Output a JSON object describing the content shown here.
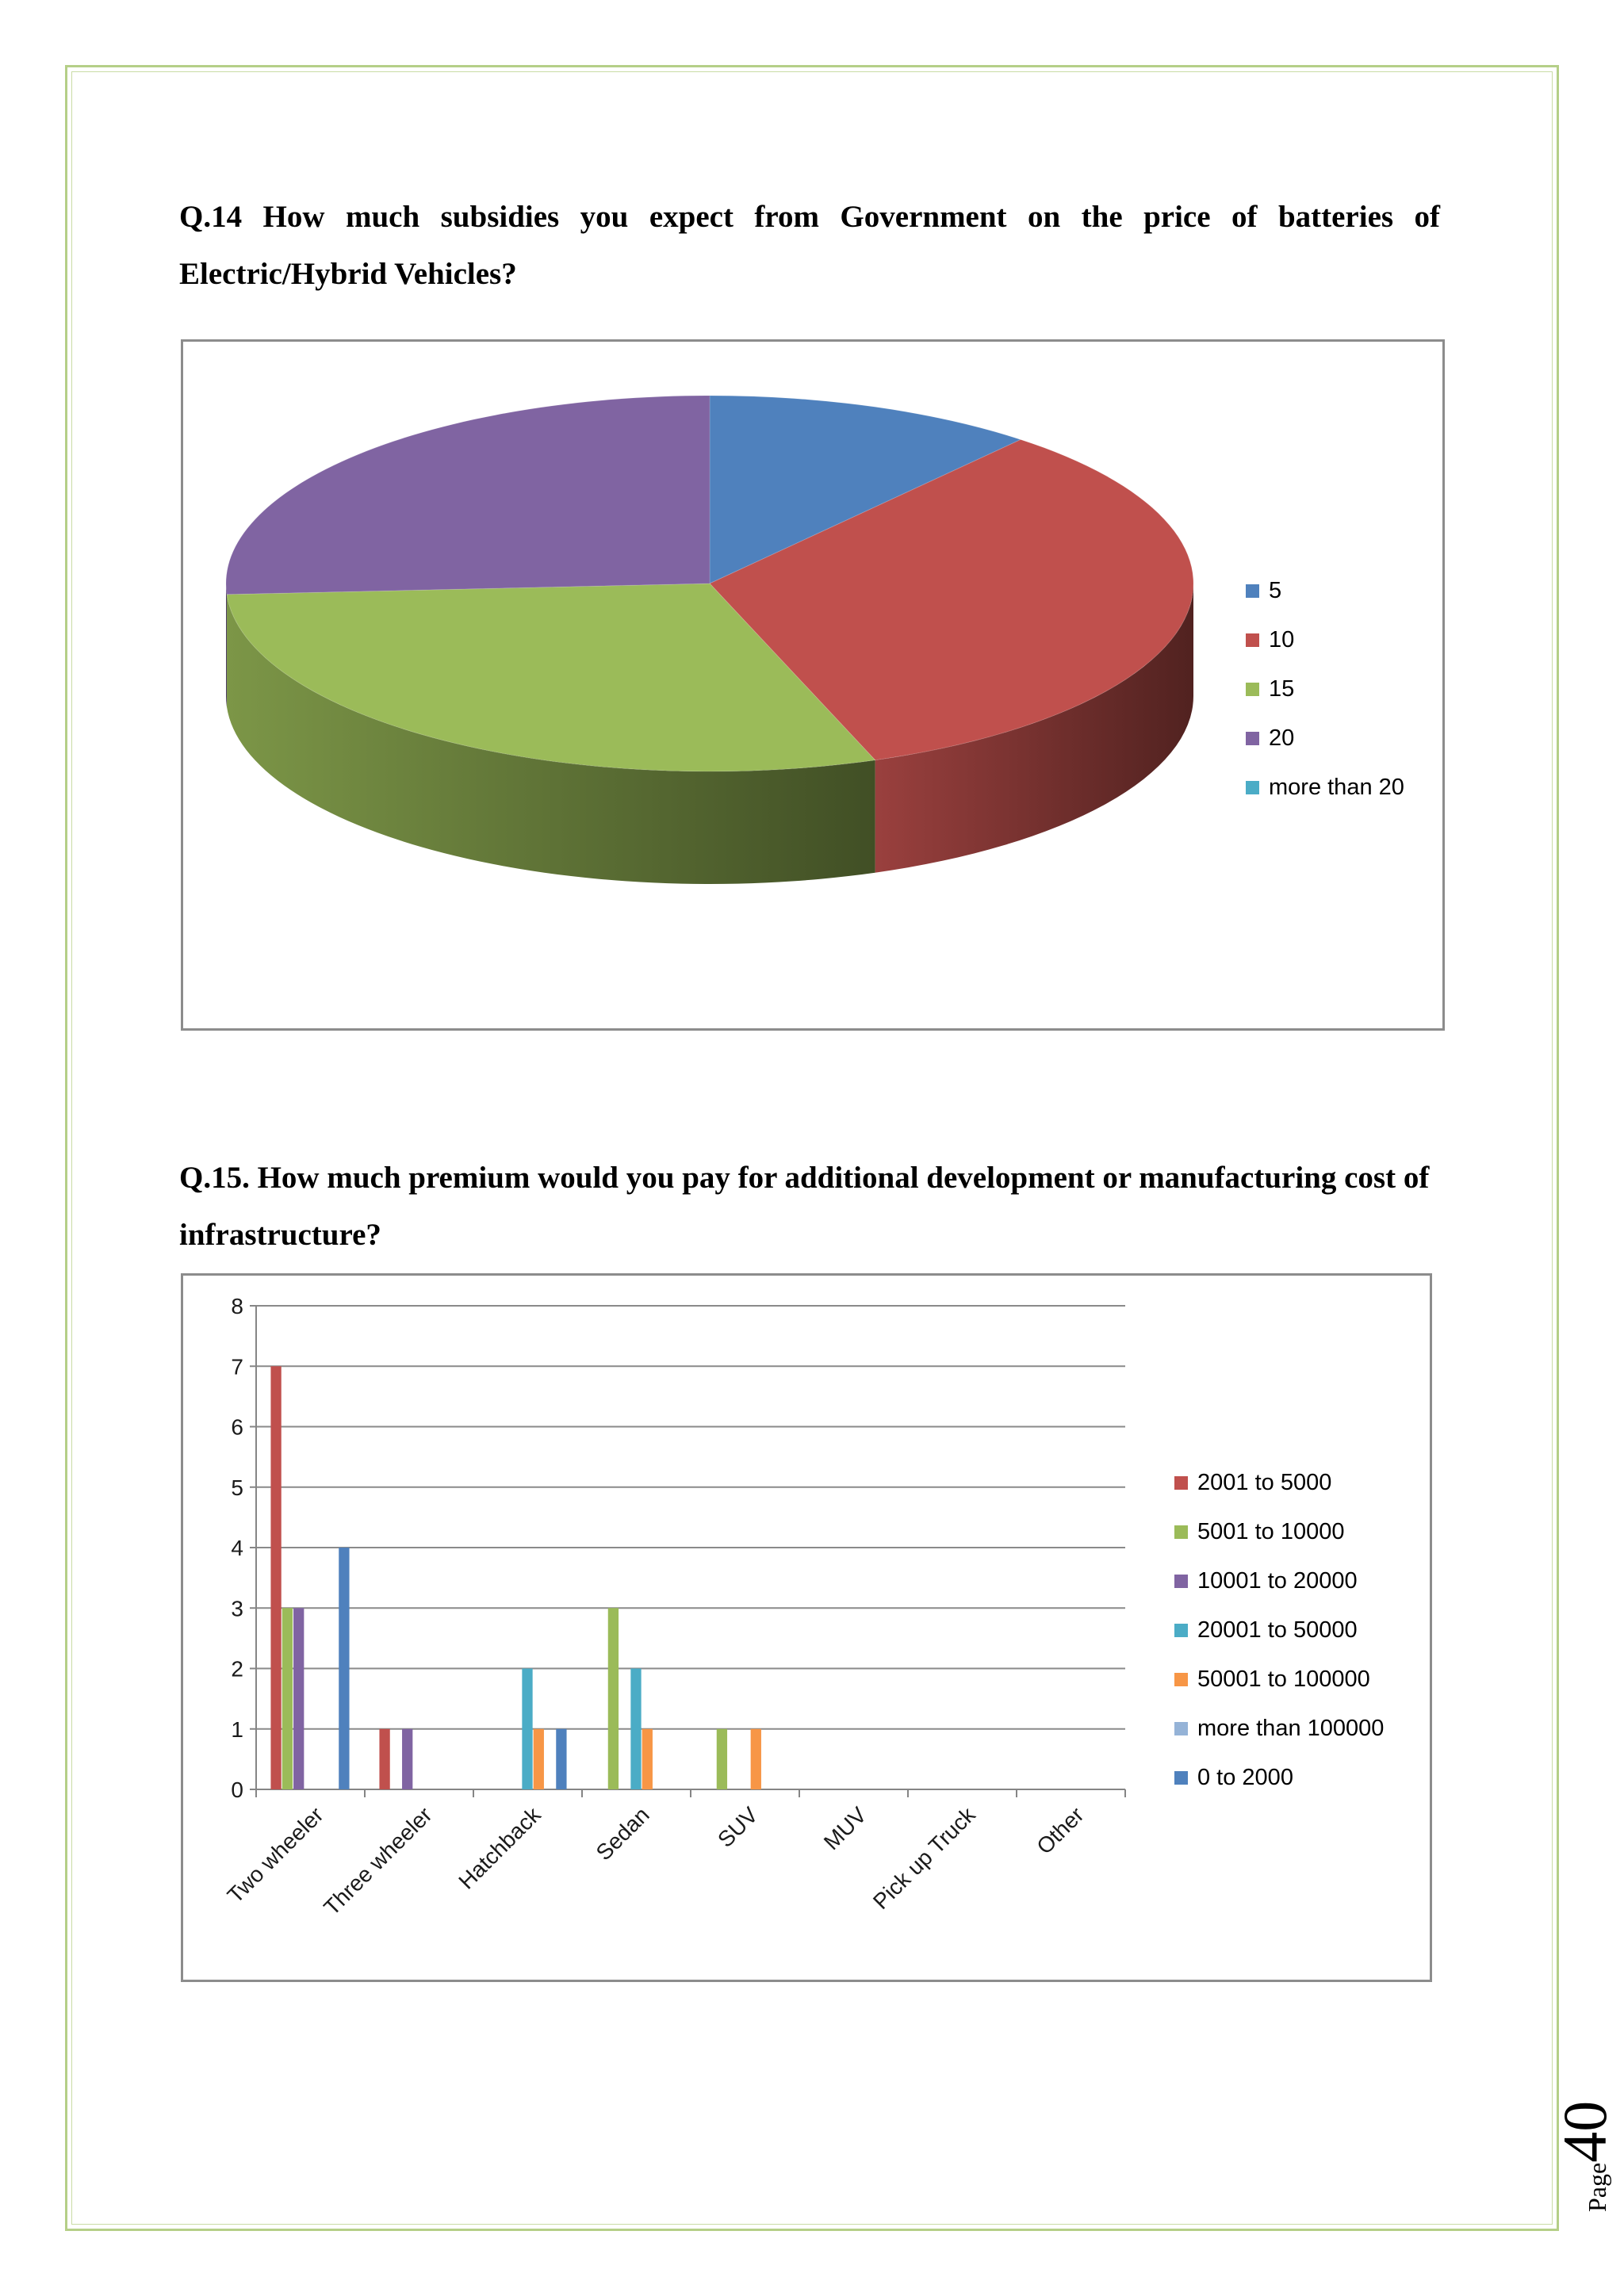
{
  "q14": {
    "text": "Q.14 How much subsidies you expect from Government on the price of batteries of Electric/Hybrid Vehicles?"
  },
  "q15": {
    "text": "Q.15. How much premium would you pay for additional development or manufacturing cost of infrastructure?"
  },
  "chart_data": [
    {
      "type": "pie",
      "title": "",
      "style": "3d",
      "legend_position": "right",
      "labels": [
        "5",
        "10",
        "15",
        "20",
        "more than 20"
      ],
      "values": [
        3,
        9,
        8,
        7,
        0
      ],
      "colors": [
        "#4f81bd",
        "#c0504d",
        "#9bbb59",
        "#8064a2",
        "#4bacc6"
      ]
    },
    {
      "type": "bar",
      "title": "",
      "xlabel": "",
      "ylabel": "",
      "ylim": [
        0,
        8
      ],
      "yticks": [
        0,
        1,
        2,
        3,
        4,
        5,
        6,
        7,
        8
      ],
      "grid": true,
      "legend_position": "right",
      "categories": [
        "Two wheeler",
        "Three wheeler",
        "Hatchback",
        "Sedan",
        "SUV",
        "MUV",
        "Pick up Truck",
        "Other"
      ],
      "series": [
        {
          "name": "2001 to 5000",
          "color": "#c0504d",
          "values": [
            7,
            1,
            0,
            0,
            0,
            0,
            0,
            0
          ]
        },
        {
          "name": "5001 to 10000",
          "color": "#9bbb59",
          "values": [
            3,
            0,
            0,
            3,
            1,
            0,
            0,
            0
          ]
        },
        {
          "name": "10001 to 20000",
          "color": "#8064a2",
          "values": [
            3,
            1,
            0,
            0,
            0,
            0,
            0,
            0
          ]
        },
        {
          "name": "20001 to 50000",
          "color": "#4bacc6",
          "values": [
            0,
            0,
            2,
            2,
            0,
            0,
            0,
            0
          ]
        },
        {
          "name": "50001 to 100000",
          "color": "#f79646",
          "values": [
            0,
            0,
            1,
            1,
            1,
            0,
            0,
            0
          ]
        },
        {
          "name": "more than 100000",
          "color": "#95b3d7",
          "values": [
            0,
            0,
            0,
            0,
            0,
            0,
            0,
            0
          ]
        },
        {
          "name": "0 to 2000",
          "color": "#4f81bd",
          "values": [
            4,
            0,
            1,
            0,
            0,
            0,
            0,
            0
          ]
        }
      ]
    }
  ],
  "footer": {
    "page_word": "Page",
    "page_number": "40"
  }
}
